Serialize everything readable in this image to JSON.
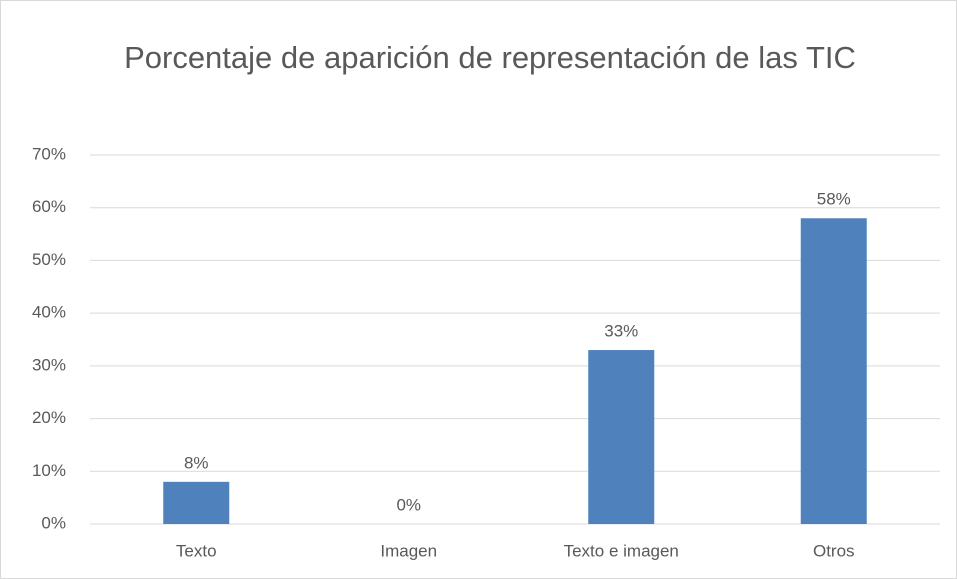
{
  "chart_data": {
    "type": "bar",
    "title": "Porcentaje de aparición de representación de las TIC",
    "categories": [
      "Texto",
      "Imagen",
      "Texto e imagen",
      "Otros"
    ],
    "values": [
      8,
      0,
      33,
      58
    ],
    "value_labels": [
      "8%",
      "0%",
      "33%",
      "58%"
    ],
    "color": "#4f81bd",
    "ylim": [
      0,
      70
    ],
    "yticks": [
      {
        "value": 0,
        "label": "0%"
      },
      {
        "value": 10,
        "label": "10%"
      },
      {
        "value": 20,
        "label": "20%"
      },
      {
        "value": 30,
        "label": "30%"
      },
      {
        "value": 40,
        "label": "40%"
      },
      {
        "value": 50,
        "label": "50%"
      },
      {
        "value": 60,
        "label": "60%"
      },
      {
        "value": 70,
        "label": "70%"
      }
    ],
    "grid": true
  }
}
